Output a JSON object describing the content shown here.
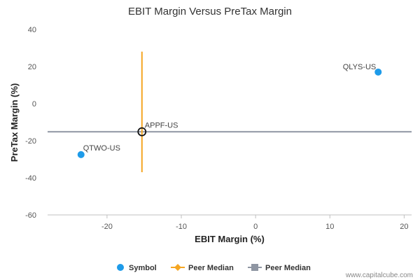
{
  "chart_data": {
    "type": "scatter",
    "title": "EBIT Margin Versus PreTax Margin",
    "xlabel": "EBIT Margin (%)",
    "ylabel": "PreTax Margin (%)",
    "xlim": [
      -28,
      21
    ],
    "ylim": [
      -60,
      40
    ],
    "x_ticks": [
      -20,
      -10,
      0,
      10,
      20
    ],
    "y_ticks": [
      40,
      20,
      0,
      -20,
      -40,
      -60
    ],
    "grid": false,
    "legend_placement": "bottom",
    "points": [
      {
        "label": "QLYS-US",
        "x": 16.5,
        "y": 17.0
      },
      {
        "label": "QTWO-US",
        "x": -23.5,
        "y": -27.5
      },
      {
        "label": "APPF-US",
        "x": -15.3,
        "y": -15.2
      }
    ],
    "peer_median": {
      "x": -15.3,
      "y": -15.2,
      "vertical_range": [
        -37,
        28
      ]
    },
    "legend": [
      {
        "label": "Symbol",
        "color": "#1e9be9",
        "marker": "circle"
      },
      {
        "label": "Peer Median",
        "color": "#f5a623",
        "marker": "diamond-line"
      },
      {
        "label": "Peer Median",
        "color": "#8f96a3",
        "marker": "square-line"
      }
    ],
    "colors": {
      "symbol": "#1e9be9",
      "median_vertical": "#f5a623",
      "median_horizontal": "#8f96a3"
    }
  },
  "watermark": "www.capitalcube.com"
}
